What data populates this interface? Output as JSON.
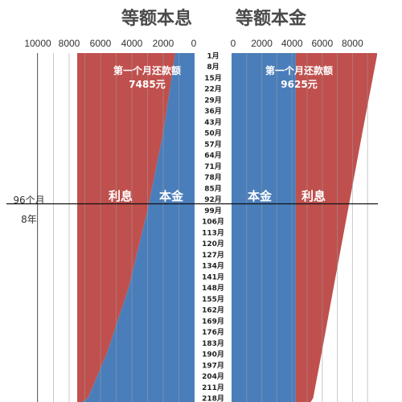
{
  "titles": {
    "left": "等额本息",
    "right": "等额本金"
  },
  "axes": {
    "left_ticks": [
      "10000",
      "8000",
      "6000",
      "4000",
      "2000",
      "0"
    ],
    "right_ticks": [
      "0",
      "2000",
      "4000",
      "6000",
      "8000"
    ],
    "xlim": [
      0,
      10000
    ]
  },
  "colors": {
    "principal": "#4A7EBB",
    "interest": "#C0504D",
    "grid": "#9a9a9a"
  },
  "month_labels": [
    "1月",
    "8月",
    "15月",
    "22月",
    "29月",
    "36月",
    "43月",
    "50月",
    "57月",
    "64月",
    "71月",
    "78月",
    "85月",
    "92月",
    "99月",
    "106月",
    "113月",
    "120月",
    "127月",
    "134月",
    "141月",
    "148月",
    "155月",
    "162月",
    "169月",
    "176月",
    "183月",
    "190月",
    "197月",
    "204月",
    "211月",
    "218月"
  ],
  "marker": {
    "months_label": "96个月",
    "years_label": "8年",
    "month": 96
  },
  "left_panel": {
    "first_month_text": "第一个月还款额",
    "first_month_value": "7485元",
    "interest_label": "利息",
    "principal_label": "本金"
  },
  "right_panel": {
    "first_month_text": "第一个月还款额",
    "first_month_value": "9625元",
    "interest_label": "利息",
    "principal_label": "本金"
  },
  "chart_data": [
    {
      "type": "area",
      "title": "等额本息",
      "x_unit": "月",
      "x": [
        1,
        50,
        99,
        148,
        190,
        218
      ],
      "series": [
        {
          "name": "本金",
          "values": [
            1250,
            2000,
            3000,
            4200,
            5600,
            6800
          ]
        },
        {
          "name": "利息",
          "values": [
            6235,
            5485,
            4485,
            3285,
            1885,
            685
          ]
        }
      ],
      "ylim": [
        0,
        10000
      ]
    },
    {
      "type": "area",
      "title": "等额本金",
      "x_unit": "月",
      "x": [
        1,
        50,
        99,
        148,
        190,
        218
      ],
      "series": [
        {
          "name": "本金",
          "values": [
            4250,
            4250,
            4250,
            4250,
            4250,
            4250
          ]
        },
        {
          "name": "利息",
          "values": [
            5375,
            4400,
            3450,
            2500,
            1700,
            1150
          ]
        }
      ],
      "ylim": [
        0,
        10000
      ]
    }
  ]
}
